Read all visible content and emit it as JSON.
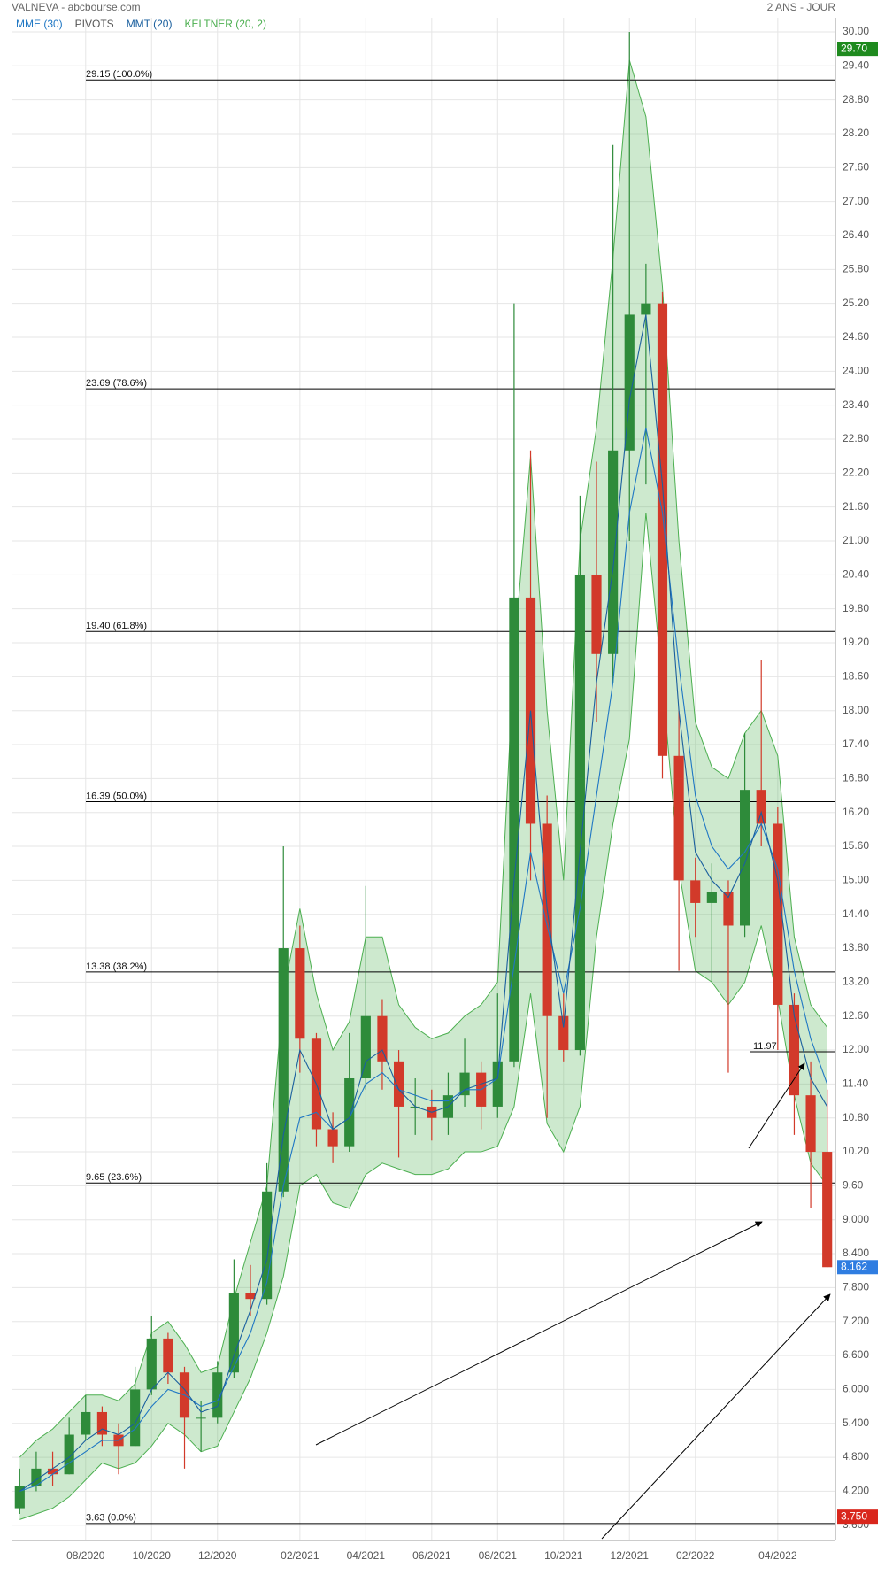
{
  "chart_data": {
    "type": "candlestick",
    "title": "VALNEVA - abcbourse.com",
    "subtitle": "2 ANS - JOUR",
    "categories": [
      null,
      null,
      null,
      null,
      "08/2020",
      null,
      null,
      null,
      "10/2020",
      null,
      null,
      null,
      "12/2020",
      null,
      null,
      null,
      null,
      "02/2021",
      null,
      null,
      null,
      "04/2021",
      null,
      null,
      null,
      "06/2021",
      null,
      null,
      null,
      "08/2021",
      null,
      null,
      null,
      "10/2021",
      null,
      null,
      null,
      "12/2021",
      null,
      null,
      null,
      "02/2022",
      null,
      null,
      null,
      null,
      "04/2022",
      null,
      null,
      null
    ],
    "open": [
      3.9,
      4.3,
      4.6,
      4.5,
      5.2,
      5.6,
      5.2,
      5.0,
      6.0,
      6.9,
      6.3,
      5.5,
      5.5,
      6.3,
      7.7,
      7.6,
      9.5,
      13.8,
      12.2,
      10.6,
      10.3,
      11.5,
      12.6,
      11.8,
      11.0,
      11.0,
      10.8,
      11.2,
      11.6,
      11.0,
      11.8,
      20.0,
      16.0,
      12.6,
      12.0,
      20.4,
      19.0,
      22.6,
      25.0,
      25.2,
      17.2,
      15.0,
      14.6,
      14.8,
      14.2,
      16.6,
      16.0,
      12.8,
      11.2,
      10.2
    ],
    "high": [
      4.6,
      4.9,
      4.9,
      5.5,
      5.9,
      5.7,
      5.4,
      6.4,
      7.3,
      7.0,
      6.4,
      5.8,
      6.5,
      8.3,
      8.2,
      10.0,
      15.6,
      14.2,
      12.3,
      10.9,
      12.3,
      14.9,
      12.9,
      12.0,
      11.5,
      11.3,
      11.6,
      12.2,
      11.8,
      13.0,
      25.2,
      22.6,
      16.5,
      13.0,
      21.8,
      22.4,
      28.0,
      30.0,
      25.9,
      25.4,
      18.0,
      15.4,
      15.3,
      15.0,
      17.6,
      18.9,
      16.3,
      13.0,
      11.8,
      11.3
    ],
    "low": [
      3.8,
      4.2,
      4.3,
      4.5,
      5.1,
      5.0,
      4.5,
      5.0,
      5.9,
      6.1,
      4.6,
      4.9,
      5.4,
      6.2,
      7.3,
      7.5,
      9.4,
      11.6,
      10.3,
      10.0,
      10.2,
      11.3,
      11.3,
      10.1,
      10.5,
      10.4,
      10.5,
      11.0,
      10.6,
      10.8,
      11.7,
      15.0,
      10.8,
      11.8,
      11.9,
      17.8,
      18.5,
      21.0,
      22.0,
      16.8,
      13.4,
      14.0,
      13.2,
      11.6,
      14.0,
      15.6,
      12.0,
      10.5,
      9.2,
      8.162
    ],
    "close": [
      4.3,
      4.6,
      4.5,
      5.2,
      5.6,
      5.2,
      5.0,
      6.0,
      6.9,
      6.3,
      5.5,
      5.5,
      6.3,
      7.7,
      7.6,
      9.5,
      13.8,
      12.2,
      10.6,
      10.3,
      11.5,
      12.6,
      11.8,
      11.0,
      11.0,
      10.8,
      11.2,
      11.6,
      11.0,
      11.8,
      20.0,
      16.0,
      12.6,
      12.0,
      20.4,
      19.0,
      22.6,
      25.0,
      25.2,
      17.2,
      15.0,
      14.6,
      14.8,
      14.2,
      16.6,
      16.0,
      12.8,
      11.2,
      10.2,
      8.162
    ],
    "up_color": "#2e8b3a",
    "down_color": "#d23a2a",
    "series": [
      {
        "name": "MME (30)",
        "color": "#1f77c4",
        "values": [
          4.2,
          4.3,
          4.5,
          4.7,
          4.9,
          5.1,
          5.1,
          5.3,
          5.7,
          6.0,
          5.9,
          5.7,
          5.8,
          6.4,
          7.0,
          7.9,
          9.6,
          10.8,
          10.9,
          10.6,
          10.8,
          11.4,
          11.6,
          11.3,
          11.2,
          11.1,
          11.1,
          11.3,
          11.3,
          11.5,
          13.5,
          15.5,
          14.2,
          13.0,
          14.5,
          16.5,
          18.5,
          21.5,
          23.0,
          21.5,
          18.8,
          16.5,
          15.6,
          15.2,
          15.5,
          16.0,
          15.2,
          13.4,
          12.2,
          11.4
        ]
      },
      {
        "name": "PIVOTS",
        "color": "#555555"
      },
      {
        "name": "MMT (20)",
        "color": "#1a5f9e",
        "values": [
          4.2,
          4.4,
          4.6,
          4.8,
          5.1,
          5.3,
          5.2,
          5.4,
          6.0,
          6.3,
          6.0,
          5.6,
          5.7,
          6.6,
          7.4,
          8.3,
          10.5,
          12.0,
          11.4,
          10.6,
          10.8,
          11.8,
          12.0,
          11.3,
          11.0,
          10.9,
          11.0,
          11.3,
          11.4,
          11.5,
          15.0,
          18.0,
          14.5,
          12.4,
          15.5,
          18.5,
          20.5,
          23.5,
          25.0,
          22.0,
          18.0,
          15.5,
          15.0,
          14.7,
          15.3,
          16.2,
          15.0,
          12.6,
          11.5,
          11.0
        ]
      }
    ],
    "keltner": {
      "name": "KELTNER (20, 2)",
      "color": "#4caf50",
      "upper": [
        4.8,
        5.1,
        5.3,
        5.6,
        5.9,
        5.9,
        5.8,
        6.1,
        7.0,
        7.2,
        6.8,
        6.3,
        6.4,
        7.6,
        8.6,
        9.6,
        13.0,
        14.5,
        13.0,
        12.0,
        12.5,
        14.0,
        14.0,
        12.8,
        12.4,
        12.2,
        12.3,
        12.6,
        12.8,
        13.2,
        19.0,
        22.5,
        18.0,
        15.0,
        21.0,
        23.0,
        26.0,
        29.5,
        28.5,
        25.5,
        21.0,
        17.8,
        17.0,
        16.8,
        17.6,
        18.0,
        17.2,
        14.0,
        12.8,
        12.4
      ],
      "lower": [
        3.7,
        3.8,
        3.9,
        4.1,
        4.4,
        4.7,
        4.6,
        4.7,
        5.0,
        5.4,
        5.2,
        4.9,
        5.0,
        5.6,
        6.2,
        7.0,
        8.0,
        9.6,
        9.8,
        9.3,
        9.2,
        9.8,
        10.0,
        9.9,
        9.8,
        9.8,
        9.9,
        10.2,
        10.2,
        10.3,
        11.0,
        13.0,
        10.7,
        10.2,
        11.0,
        14.0,
        16.0,
        17.5,
        21.5,
        18.5,
        15.2,
        13.4,
        13.2,
        12.8,
        13.2,
        14.2,
        12.9,
        11.2,
        10.0,
        9.6
      ]
    },
    "fib_levels": [
      {
        "value": 29.15,
        "label": "29.15  (100.0%)"
      },
      {
        "value": 23.69,
        "label": "23.69  (78.6%)"
      },
      {
        "value": 19.4,
        "label": "19.40  (61.8%)"
      },
      {
        "value": 16.39,
        "label": "16.39  (50.0%)"
      },
      {
        "value": 13.38,
        "label": "13.38  (38.2%)"
      },
      {
        "value": 9.65,
        "label": "9.65  (23.6%)"
      },
      {
        "value": 3.63,
        "label": "3.63  (0.0%)"
      }
    ],
    "level_line": {
      "value": 11.97,
      "label": "11.97"
    },
    "price_tags": [
      {
        "value": 29.7,
        "label": "29.70",
        "color": "#1e8a1e"
      },
      {
        "value": 8.162,
        "label": "8.162",
        "color": "#2f7de1"
      },
      {
        "value": 3.75,
        "label": "3.750",
        "color": "#d9261c"
      }
    ],
    "ylim": [
      3.33,
      30.25
    ],
    "yticks": [
      {
        "value": 30.0,
        "label": "30.00"
      },
      {
        "value": 29.4,
        "label": "29.40"
      },
      {
        "value": 28.8,
        "label": "28.80"
      },
      {
        "value": 28.2,
        "label": "28.20"
      },
      {
        "value": 27.6,
        "label": "27.60"
      },
      {
        "value": 27.0,
        "label": "27.00"
      },
      {
        "value": 26.4,
        "label": "26.40"
      },
      {
        "value": 25.8,
        "label": "25.80"
      },
      {
        "value": 25.2,
        "label": "25.20"
      },
      {
        "value": 24.6,
        "label": "24.60"
      },
      {
        "value": 24.0,
        "label": "24.00"
      },
      {
        "value": 23.4,
        "label": "23.40"
      },
      {
        "value": 22.8,
        "label": "22.80"
      },
      {
        "value": 22.2,
        "label": "22.20"
      },
      {
        "value": 21.6,
        "label": "21.60"
      },
      {
        "value": 21.0,
        "label": "21.00"
      },
      {
        "value": 20.4,
        "label": "20.40"
      },
      {
        "value": 19.8,
        "label": "19.80"
      },
      {
        "value": 19.2,
        "label": "19.20"
      },
      {
        "value": 18.6,
        "label": "18.60"
      },
      {
        "value": 18.0,
        "label": "18.00"
      },
      {
        "value": 17.4,
        "label": "17.40"
      },
      {
        "value": 16.8,
        "label": "16.80"
      },
      {
        "value": 16.2,
        "label": "16.20"
      },
      {
        "value": 15.6,
        "label": "15.60"
      },
      {
        "value": 15.0,
        "label": "15.00"
      },
      {
        "value": 14.4,
        "label": "14.40"
      },
      {
        "value": 13.8,
        "label": "13.80"
      },
      {
        "value": 13.2,
        "label": "13.20"
      },
      {
        "value": 12.6,
        "label": "12.60"
      },
      {
        "value": 12.0,
        "label": "12.00"
      },
      {
        "value": 11.4,
        "label": "11.40"
      },
      {
        "value": 10.8,
        "label": "10.80"
      },
      {
        "value": 10.2,
        "label": "10.20"
      },
      {
        "value": 9.6,
        "label": "9.60"
      },
      {
        "value": 9.0,
        "label": "9.000"
      },
      {
        "value": 8.4,
        "label": "8.400"
      },
      {
        "value": 7.8,
        "label": "7.800"
      },
      {
        "value": 7.2,
        "label": "7.200"
      },
      {
        "value": 6.6,
        "label": "6.600"
      },
      {
        "value": 6.0,
        "label": "6.000"
      },
      {
        "value": 5.4,
        "label": "5.400"
      },
      {
        "value": 4.8,
        "label": "4.800"
      },
      {
        "value": 4.2,
        "label": "4.200"
      },
      {
        "value": 3.6,
        "label": "3.600"
      }
    ],
    "grid": true
  }
}
